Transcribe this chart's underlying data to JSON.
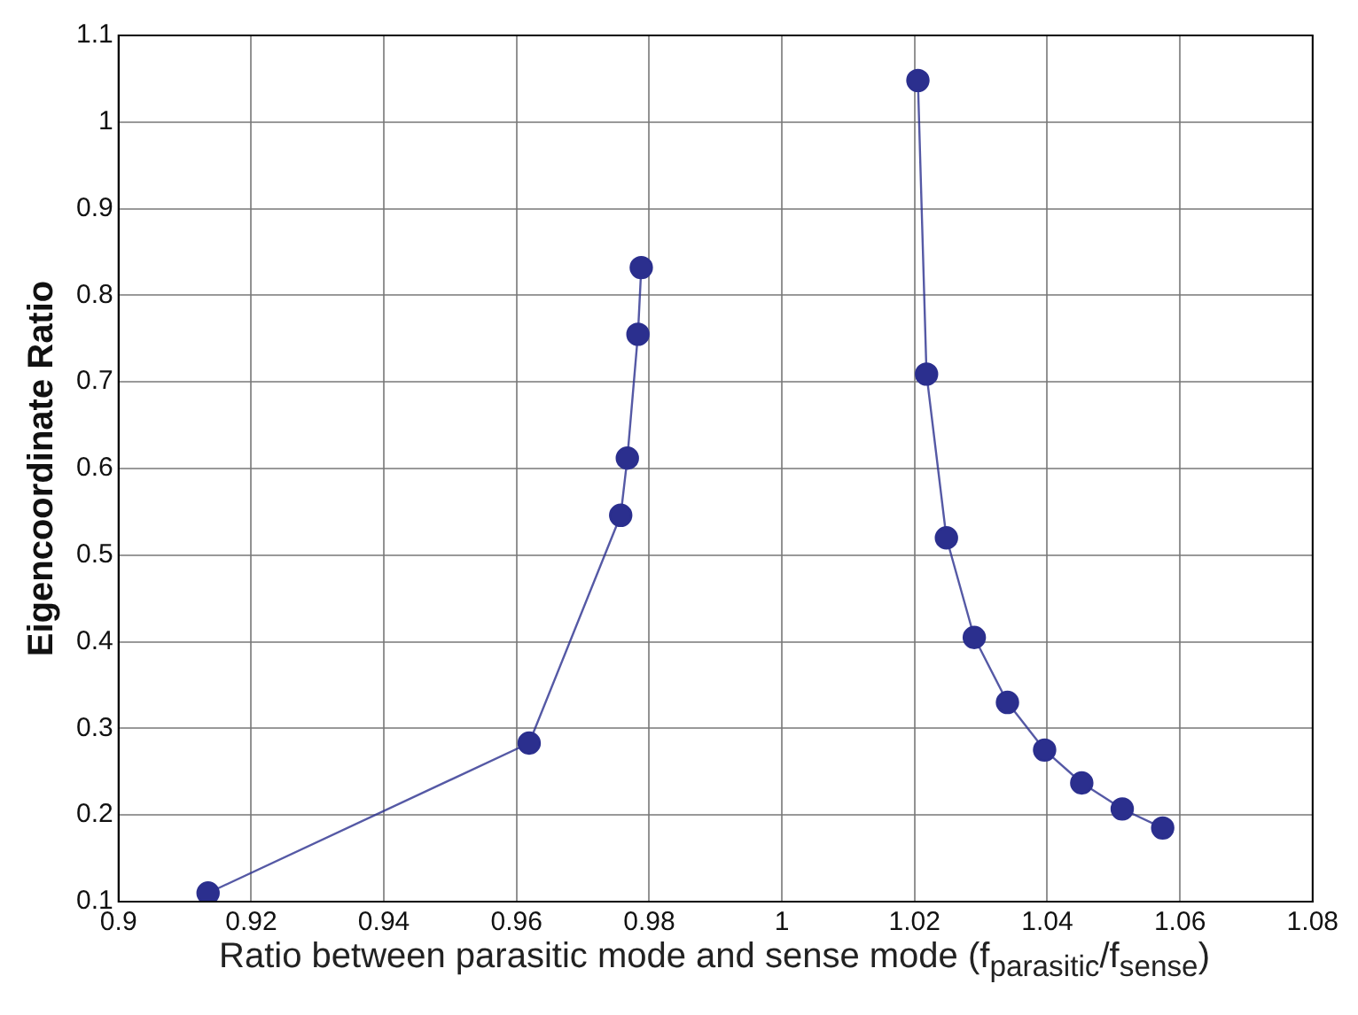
{
  "chart_data": {
    "type": "line",
    "xlabel": "Ratio between parasitic mode and sense mode (f$_{parasitic}$/f$_{sense}$)",
    "ylabel": "Eigencoordinate Ratio",
    "series": [
      {
        "color": "#2b2f8e",
        "x": [
          0.9135,
          0.9619,
          0.9757,
          0.9767,
          0.9783,
          0.9788
        ],
        "values": [
          0.11,
          0.283,
          0.546,
          0.612,
          0.755,
          0.832
        ]
      },
      {
        "color": "#2b2f8e",
        "x": [
          1.0205,
          1.0218,
          1.0248,
          1.029,
          1.034,
          1.0396,
          1.0452,
          1.0513,
          1.0574
        ],
        "values": [
          1.048,
          0.709,
          0.52,
          0.405,
          0.33,
          0.275,
          0.237,
          0.207,
          0.185
        ]
      }
    ],
    "xlim": [
      0.9,
      1.08
    ],
    "xticks": [
      0.9,
      0.92,
      0.94,
      0.96,
      0.98,
      1,
      1.02,
      1.04,
      1.06,
      1.08
    ],
    "ylim": [
      0.1,
      1.1
    ],
    "yticks": [
      0.1,
      0.2,
      0.3,
      0.4,
      0.5,
      0.6,
      0.7,
      0.8,
      0.9,
      1,
      1.1
    ],
    "grid": true,
    "marker": "circle",
    "line_style": "solid",
    "legend": false
  }
}
